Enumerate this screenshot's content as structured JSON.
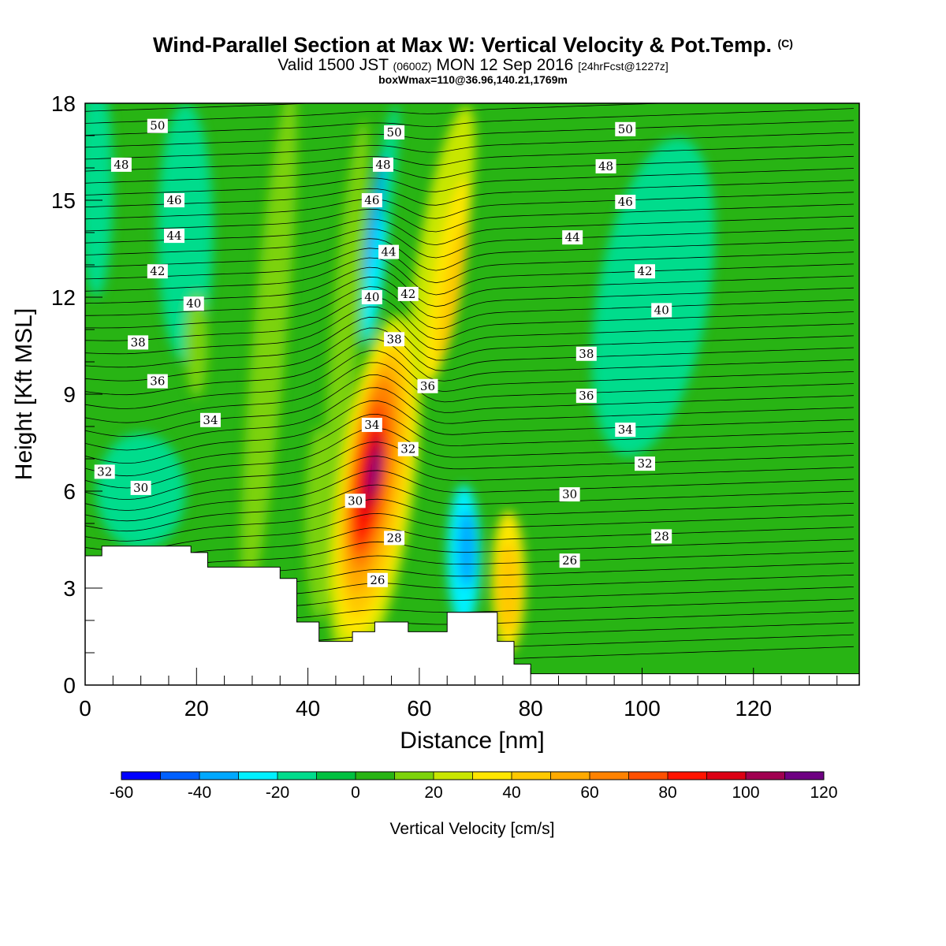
{
  "title": {
    "main": "Wind-Parallel Section at Max W: Vertical Velocity & Pot.Temp.",
    "copyright": "(C)",
    "valid_prefix": "Valid 1500 JST",
    "valid_utc": "(0600Z)",
    "valid_date": "MON 12 Sep 2016",
    "forecast": "[24hrFcst@1227z]",
    "box": "boxWmax=110@36.96,140.21,1769m"
  },
  "chart_data": {
    "type": "heatmap",
    "xlabel": "Distance [nm]",
    "ylabel": "Height [Kft MSL]",
    "xlim": [
      0,
      139
    ],
    "ylim": [
      0,
      18
    ],
    "x_ticks": [
      "0",
      "20",
      "40",
      "60",
      "80",
      "100",
      "120"
    ],
    "y_ticks": [
      "0",
      "3",
      "6",
      "9",
      "12",
      "15",
      "18"
    ],
    "colorbar": {
      "label": "Vertical Velocity [cm/s]",
      "levels": [
        -60,
        -50,
        -40,
        -30,
        -20,
        -10,
        0,
        10,
        20,
        30,
        40,
        50,
        60,
        70,
        80,
        90,
        100,
        110,
        120
      ],
      "tick_labels": [
        "-60",
        "-40",
        "-20",
        "0",
        "20",
        "40",
        "60",
        "80",
        "100",
        "120"
      ],
      "colors": [
        "#0000ff",
        "#0060ff",
        "#00a8ff",
        "#00f0ff",
        "#00dc8c",
        "#00c040",
        "#28b414",
        "#7cd20a",
        "#c8e600",
        "#ffe600",
        "#ffc800",
        "#ffaa00",
        "#ff8200",
        "#ff5000",
        "#ff1400",
        "#dc0014",
        "#a00050",
        "#6e0082"
      ]
    },
    "theta_labels": [
      {
        "text": "50",
        "x": 13,
        "y": 17.3
      },
      {
        "text": "50",
        "x": 55.5,
        "y": 17.1
      },
      {
        "text": "50",
        "x": 97,
        "y": 17.2
      },
      {
        "text": "48",
        "x": 6.5,
        "y": 16.1
      },
      {
        "text": "48",
        "x": 53.5,
        "y": 16.1
      },
      {
        "text": "48",
        "x": 93.5,
        "y": 16.05
      },
      {
        "text": "46",
        "x": 16,
        "y": 15.0
      },
      {
        "text": "46",
        "x": 51.5,
        "y": 15.0
      },
      {
        "text": "46",
        "x": 97,
        "y": 14.95
      },
      {
        "text": "44",
        "x": 16,
        "y": 13.9
      },
      {
        "text": "44",
        "x": 54.5,
        "y": 13.4
      },
      {
        "text": "44",
        "x": 87.5,
        "y": 13.85
      },
      {
        "text": "42",
        "x": 13,
        "y": 12.8
      },
      {
        "text": "42",
        "x": 58,
        "y": 12.1
      },
      {
        "text": "42",
        "x": 100.5,
        "y": 12.8
      },
      {
        "text": "40",
        "x": 19.5,
        "y": 11.8
      },
      {
        "text": "40",
        "x": 51.5,
        "y": 12.0
      },
      {
        "text": "40",
        "x": 103.5,
        "y": 11.6
      },
      {
        "text": "38",
        "x": 9.5,
        "y": 10.6
      },
      {
        "text": "38",
        "x": 55.5,
        "y": 10.7
      },
      {
        "text": "38",
        "x": 90,
        "y": 10.25
      },
      {
        "text": "36",
        "x": 13,
        "y": 9.4
      },
      {
        "text": "36",
        "x": 61.5,
        "y": 9.25
      },
      {
        "text": "36",
        "x": 90,
        "y": 8.95
      },
      {
        "text": "34",
        "x": 22.5,
        "y": 8.2
      },
      {
        "text": "34",
        "x": 51.5,
        "y": 8.05
      },
      {
        "text": "34",
        "x": 97,
        "y": 7.9
      },
      {
        "text": "32",
        "x": 3.5,
        "y": 6.6
      },
      {
        "text": "32",
        "x": 58,
        "y": 7.3
      },
      {
        "text": "32",
        "x": 100.5,
        "y": 6.85
      },
      {
        "text": "30",
        "x": 10,
        "y": 6.1
      },
      {
        "text": "30",
        "x": 48.5,
        "y": 5.7
      },
      {
        "text": "30",
        "x": 87,
        "y": 5.9
      },
      {
        "text": "28",
        "x": 55.5,
        "y": 4.55
      },
      {
        "text": "28",
        "x": 103.5,
        "y": 4.6
      },
      {
        "text": "26",
        "x": 52.5,
        "y": 3.25
      },
      {
        "text": "26",
        "x": 87,
        "y": 3.85
      }
    ],
    "terrain_top": [
      [
        0,
        4.0
      ],
      [
        3,
        4.0
      ],
      [
        3,
        4.3
      ],
      [
        19,
        4.3
      ],
      [
        19,
        4.1
      ],
      [
        22,
        4.1
      ],
      [
        22,
        3.65
      ],
      [
        35,
        3.65
      ],
      [
        35,
        3.3
      ],
      [
        38,
        3.3
      ],
      [
        38,
        1.95
      ],
      [
        42,
        1.95
      ],
      [
        42,
        1.35
      ],
      [
        48,
        1.35
      ],
      [
        48,
        1.65
      ],
      [
        52,
        1.65
      ],
      [
        52,
        1.95
      ],
      [
        58,
        1.95
      ],
      [
        58,
        1.65
      ],
      [
        65,
        1.65
      ],
      [
        65,
        2.25
      ],
      [
        74,
        2.25
      ],
      [
        74,
        1.35
      ],
      [
        77,
        1.35
      ],
      [
        77,
        0.65
      ],
      [
        80,
        0.65
      ],
      [
        80,
        0.35
      ],
      [
        139,
        0.35
      ]
    ]
  }
}
